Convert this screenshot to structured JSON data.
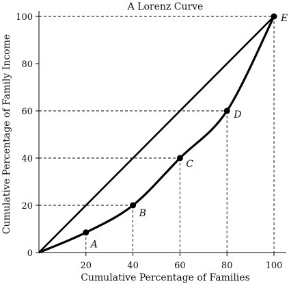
{
  "chart_data": {
    "type": "line",
    "title": "A Lorenz Curve",
    "xlabel": "Cumulative Percentage of Families",
    "ylabel": "Cumulative Percentage of Family Income",
    "xlim": [
      0,
      100
    ],
    "ylim": [
      0,
      100
    ],
    "x_ticks": [
      20,
      40,
      60,
      80,
      100
    ],
    "y_ticks": [
      0,
      20,
      40,
      60,
      80,
      100
    ],
    "grid": false,
    "equality_line": {
      "x": [
        0,
        100
      ],
      "y": [
        0,
        100
      ]
    },
    "lorenz_curve": {
      "points": [
        {
          "label": "",
          "x": 0,
          "y": 0
        },
        {
          "label": "A",
          "x": 20,
          "y": 8.5
        },
        {
          "label": "B",
          "x": 40,
          "y": 20
        },
        {
          "label": "C",
          "x": 60,
          "y": 40
        },
        {
          "label": "D",
          "x": 80,
          "y": 60
        },
        {
          "label": "E",
          "x": 100,
          "y": 100
        }
      ]
    },
    "guide_lines": "dashed"
  }
}
